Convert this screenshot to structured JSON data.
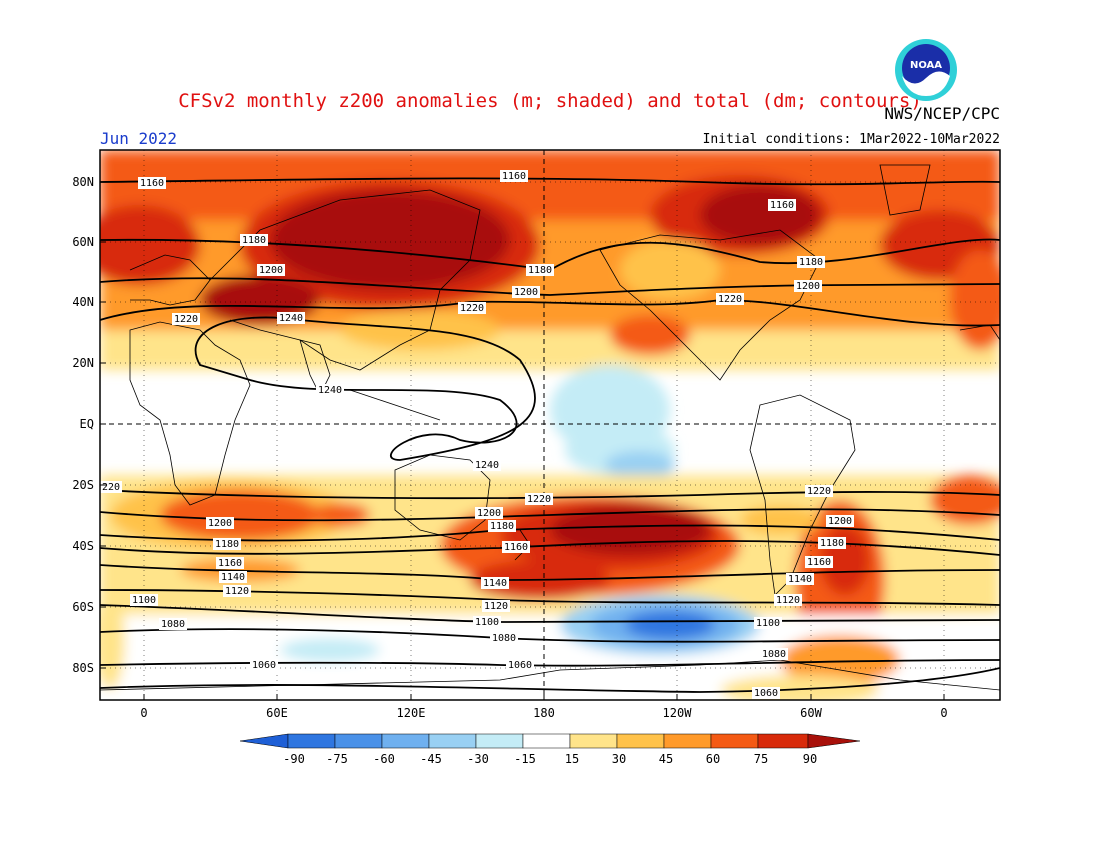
{
  "header": {
    "title": "CFSv2 monthly z200 anomalies (m; shaded) and total (dm; contours)",
    "agency": "NWS/NCEP/CPC",
    "month": "Jun 2022",
    "initial_conditions": "Initial conditions: 1Mar2022-10Mar2022",
    "logo_text": "NOAA"
  },
  "map": {
    "lat_labels": [
      "80N",
      "60N",
      "40N",
      "20N",
      "EQ",
      "20S",
      "40S",
      "60S",
      "80S"
    ],
    "lon_labels": [
      "0",
      "60E",
      "120E",
      "180",
      "120W",
      "60W",
      "0"
    ],
    "contour_labels": [
      "1160",
      "1160",
      "1160",
      "1180",
      "1180",
      "1180",
      "1200",
      "1200",
      "1200",
      "1220",
      "1220",
      "1220",
      "1240",
      "1240",
      "1240",
      "220",
      "1220",
      "1220",
      "1200",
      "1200",
      "1200",
      "1180",
      "1180",
      "1180",
      "1160",
      "1160",
      "1160",
      "1140",
      "1140",
      "1140",
      "1120",
      "1120",
      "1120",
      "1100",
      "1100",
      "1100",
      "1080",
      "1080",
      "1080",
      "1060",
      "1060",
      "1060"
    ]
  },
  "colorbar": {
    "labels": [
      "-90",
      "-75",
      "-60",
      "-45",
      "-30",
      "-15",
      "15",
      "30",
      "45",
      "60",
      "75",
      "90"
    ],
    "colors": [
      "#1e5fd6",
      "#2f76e0",
      "#4a91e8",
      "#6fb0ef",
      "#99d0f3",
      "#c4ecf6",
      "#ffffff",
      "#ffe48a",
      "#ffc24a",
      "#ff9a2a",
      "#f45a14",
      "#d82a0a",
      "#a8100a"
    ]
  }
}
